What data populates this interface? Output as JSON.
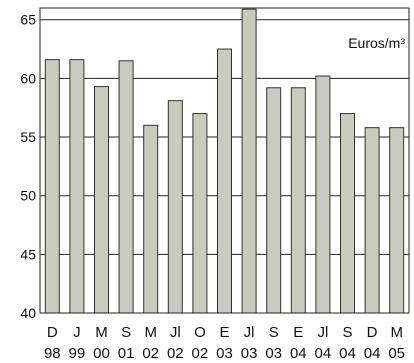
{
  "chart_data": {
    "type": "bar",
    "unit_label": "Euros/m³",
    "ylim": [
      40,
      66
    ],
    "yticks": [
      40,
      45,
      50,
      55,
      60,
      65
    ],
    "grid": true,
    "categories": [
      {
        "top": "D",
        "bottom": "98"
      },
      {
        "top": "J",
        "bottom": "99"
      },
      {
        "top": "M",
        "bottom": "00"
      },
      {
        "top": "S",
        "bottom": "01"
      },
      {
        "top": "M",
        "bottom": "02"
      },
      {
        "top": "Jl",
        "bottom": "02"
      },
      {
        "top": "O",
        "bottom": "02"
      },
      {
        "top": "E",
        "bottom": "03"
      },
      {
        "top": "Jl",
        "bottom": "03"
      },
      {
        "top": "S",
        "bottom": "03"
      },
      {
        "top": "E",
        "bottom": "04"
      },
      {
        "top": "Jl",
        "bottom": "04"
      },
      {
        "top": "S",
        "bottom": "04"
      },
      {
        "top": "D",
        "bottom": "04"
      },
      {
        "top": "M",
        "bottom": "05"
      }
    ],
    "values": [
      61.6,
      61.6,
      59.3,
      61.5,
      56.0,
      58.1,
      57.0,
      62.5,
      65.9,
      59.2,
      59.2,
      60.2,
      57.0,
      55.8,
      55.8
    ],
    "colors": {
      "bar": "#c9cbbd",
      "bar_stroke": "#333333",
      "grid": "#222222",
      "text": "#111111"
    }
  }
}
